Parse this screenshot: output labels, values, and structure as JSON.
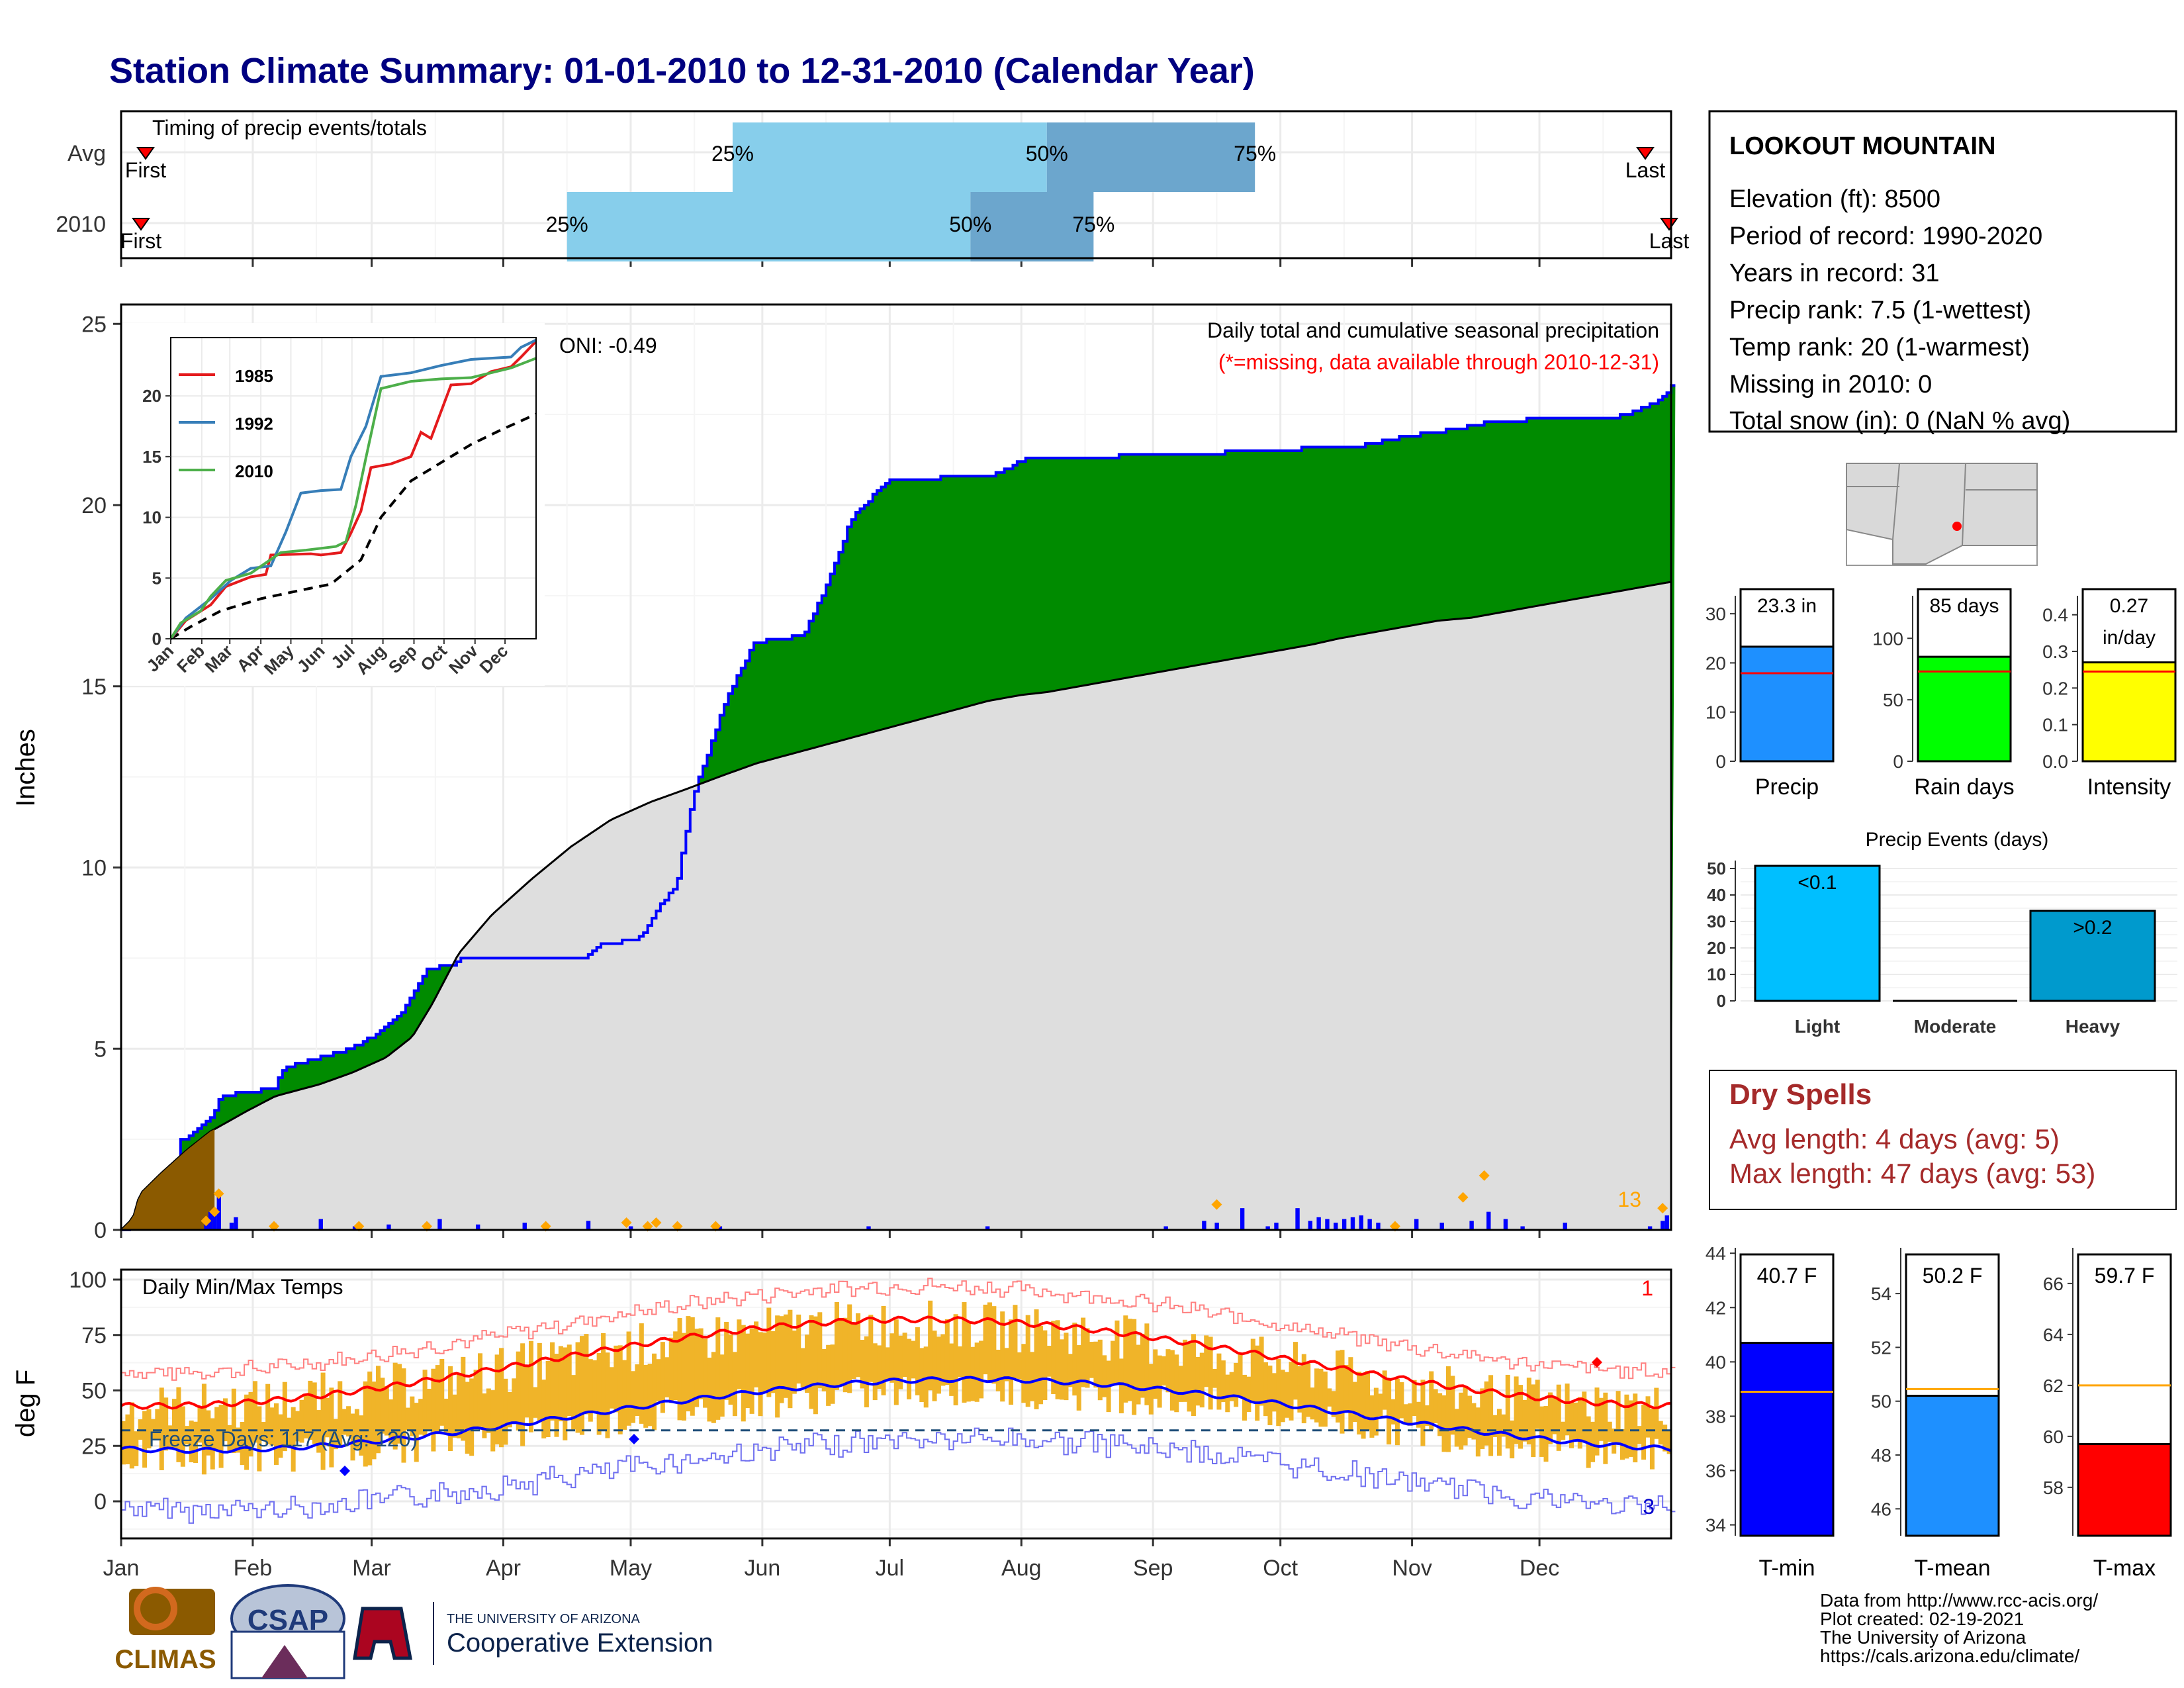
{
  "title": "Station Climate Summary: 01-01-2010 to 12-31-2010 (Calendar Year)",
  "colors": {
    "title": "#000080",
    "light_blue": "#87CEEB",
    "steel_blue": "#6CA6CD",
    "green": "#008B00",
    "gray_fill": "#DEDEDE",
    "brown": "#8B5A00",
    "blue": "#0000FF",
    "orange": "#FFA500",
    "red": "#FF0000",
    "dodger": "#1E90FF",
    "lime": "#00FF00",
    "yellow": "#FFFF00",
    "deepsky": "#00BFFF",
    "heavy_blue": "#009ACD",
    "dryspell": "#A52A2A",
    "temp_bar": "#F0B429"
  },
  "timing": {
    "label": "Timing of precip events/totals",
    "rows": [
      {
        "name": "Avg",
        "first_label": "First",
        "last_label": "Last",
        "q25": "2010-05-25",
        "q50": "2010-08-07",
        "q75": "2010-09-25",
        "p25_label": "25%",
        "p50_label": "50%",
        "p75_label": "75%"
      },
      {
        "name": "2010",
        "first_label": "First",
        "last_label": "Last",
        "q25": "2010-04-16",
        "q50": "2010-07-20",
        "q75": "2010-08-18",
        "p25_label": "25%",
        "p50_label": "50%",
        "p75_label": "75%"
      }
    ]
  },
  "station": {
    "name": "LOOKOUT MOUNTAIN",
    "lines": [
      "Elevation (ft): 8500",
      "Period of record: 1990-2020",
      "Years in record: 31",
      "Precip rank: 7.5 (1-wettest)",
      "Temp rank: 20 (1-warmest)",
      "Missing in 2010: 0",
      "Total snow (in): 0 (NaN % avg)"
    ]
  },
  "main_precip": {
    "ylabel": "Inches",
    "annotation_title": "Daily total and cumulative seasonal precipitation",
    "annotation_missing": "(*=missing, data available through 2010-12-31)",
    "oni": "ONI: -0.49",
    "count_label": "13",
    "yticks": [
      "0",
      "5",
      "10",
      "15",
      "20",
      "25"
    ]
  },
  "inset": {
    "legend": [
      "1985",
      "1992",
      "2010"
    ],
    "yticks": [
      "0",
      "5",
      "10",
      "15",
      "20"
    ],
    "xticks": [
      "Jan",
      "Feb",
      "Mar",
      "Apr",
      "May",
      "Jun",
      "Jul",
      "Aug",
      "Sep",
      "Oct",
      "Nov",
      "Dec"
    ]
  },
  "temps": {
    "ylabel": "deg F",
    "title": "Daily Min/Max Temps",
    "freeze": "Freeze Days: 117 (Avg: 120)",
    "max_label": "1",
    "min_label": "3",
    "yticks": [
      "0",
      "25",
      "50",
      "75",
      "100"
    ]
  },
  "months": [
    "Jan",
    "Feb",
    "Mar",
    "Apr",
    "May",
    "Jun",
    "Jul",
    "Aug",
    "Sep",
    "Oct",
    "Nov",
    "Dec"
  ],
  "summary_bars": [
    {
      "name": "Precip",
      "value": 23.3,
      "label": "23.3 in",
      "avg": 17.9,
      "ymax": 35,
      "yticks": [
        "0",
        "10",
        "20",
        "30"
      ]
    },
    {
      "name": "Rain days",
      "value": 85,
      "label": "85 days",
      "avg": 73,
      "ymax": 140,
      "yticks": [
        "0",
        "50",
        "100"
      ]
    },
    {
      "name": "Intensity",
      "value": 0.27,
      "label": "0.27",
      "label2": "in/day",
      "avg": 0.245,
      "ymax": 0.47,
      "yticks": [
        "0.0",
        "0.1",
        "0.2",
        "0.3",
        "0.4"
      ]
    }
  ],
  "precip_events": {
    "title": "Precip Events (days)",
    "categories": [
      "Light",
      "Moderate",
      "Heavy"
    ],
    "values": [
      51,
      0,
      34
    ],
    "bar_labels": [
      "<0.1",
      "",
      ">0.2"
    ],
    "yticks": [
      "0",
      "10",
      "20",
      "30",
      "40",
      "50"
    ]
  },
  "dry_spells": {
    "title": "Dry Spells",
    "avg": "Avg length: 4 days (avg: 5)",
    "max": "Max length: 47 days (avg: 53)"
  },
  "temp_bars": [
    {
      "name": "T-min",
      "value": 40.7,
      "label": "40.7 F",
      "avg": 38.9,
      "ymin": 33.6,
      "ymax": 44.2,
      "yticks": [
        "34",
        "36",
        "38",
        "40",
        "42",
        "44"
      ]
    },
    {
      "name": "T-mean",
      "value": 50.2,
      "label": "50.2 F",
      "avg": 50.45,
      "ymin": 45.0,
      "ymax": 55.7,
      "yticks": [
        "46",
        "48",
        "50",
        "52",
        "54"
      ]
    },
    {
      "name": "T-max",
      "value": 59.7,
      "label": "59.7 F",
      "avg": 62.0,
      "ymin": 56.1,
      "ymax": 67.4,
      "yticks": [
        "58",
        "60",
        "62",
        "64",
        "66"
      ]
    }
  ],
  "credits": [
    "Data from http://www.rcc-acis.org/",
    "Plot created: 02-19-2021",
    "The University of Arizona",
    "https://cals.arizona.edu/climate/"
  ],
  "logos": {
    "climas": "CLIMAS",
    "csap": "CSAP",
    "ua_small": "THE UNIVERSITY OF ARIZONA",
    "ua_big": "Cooperative Extension"
  }
}
